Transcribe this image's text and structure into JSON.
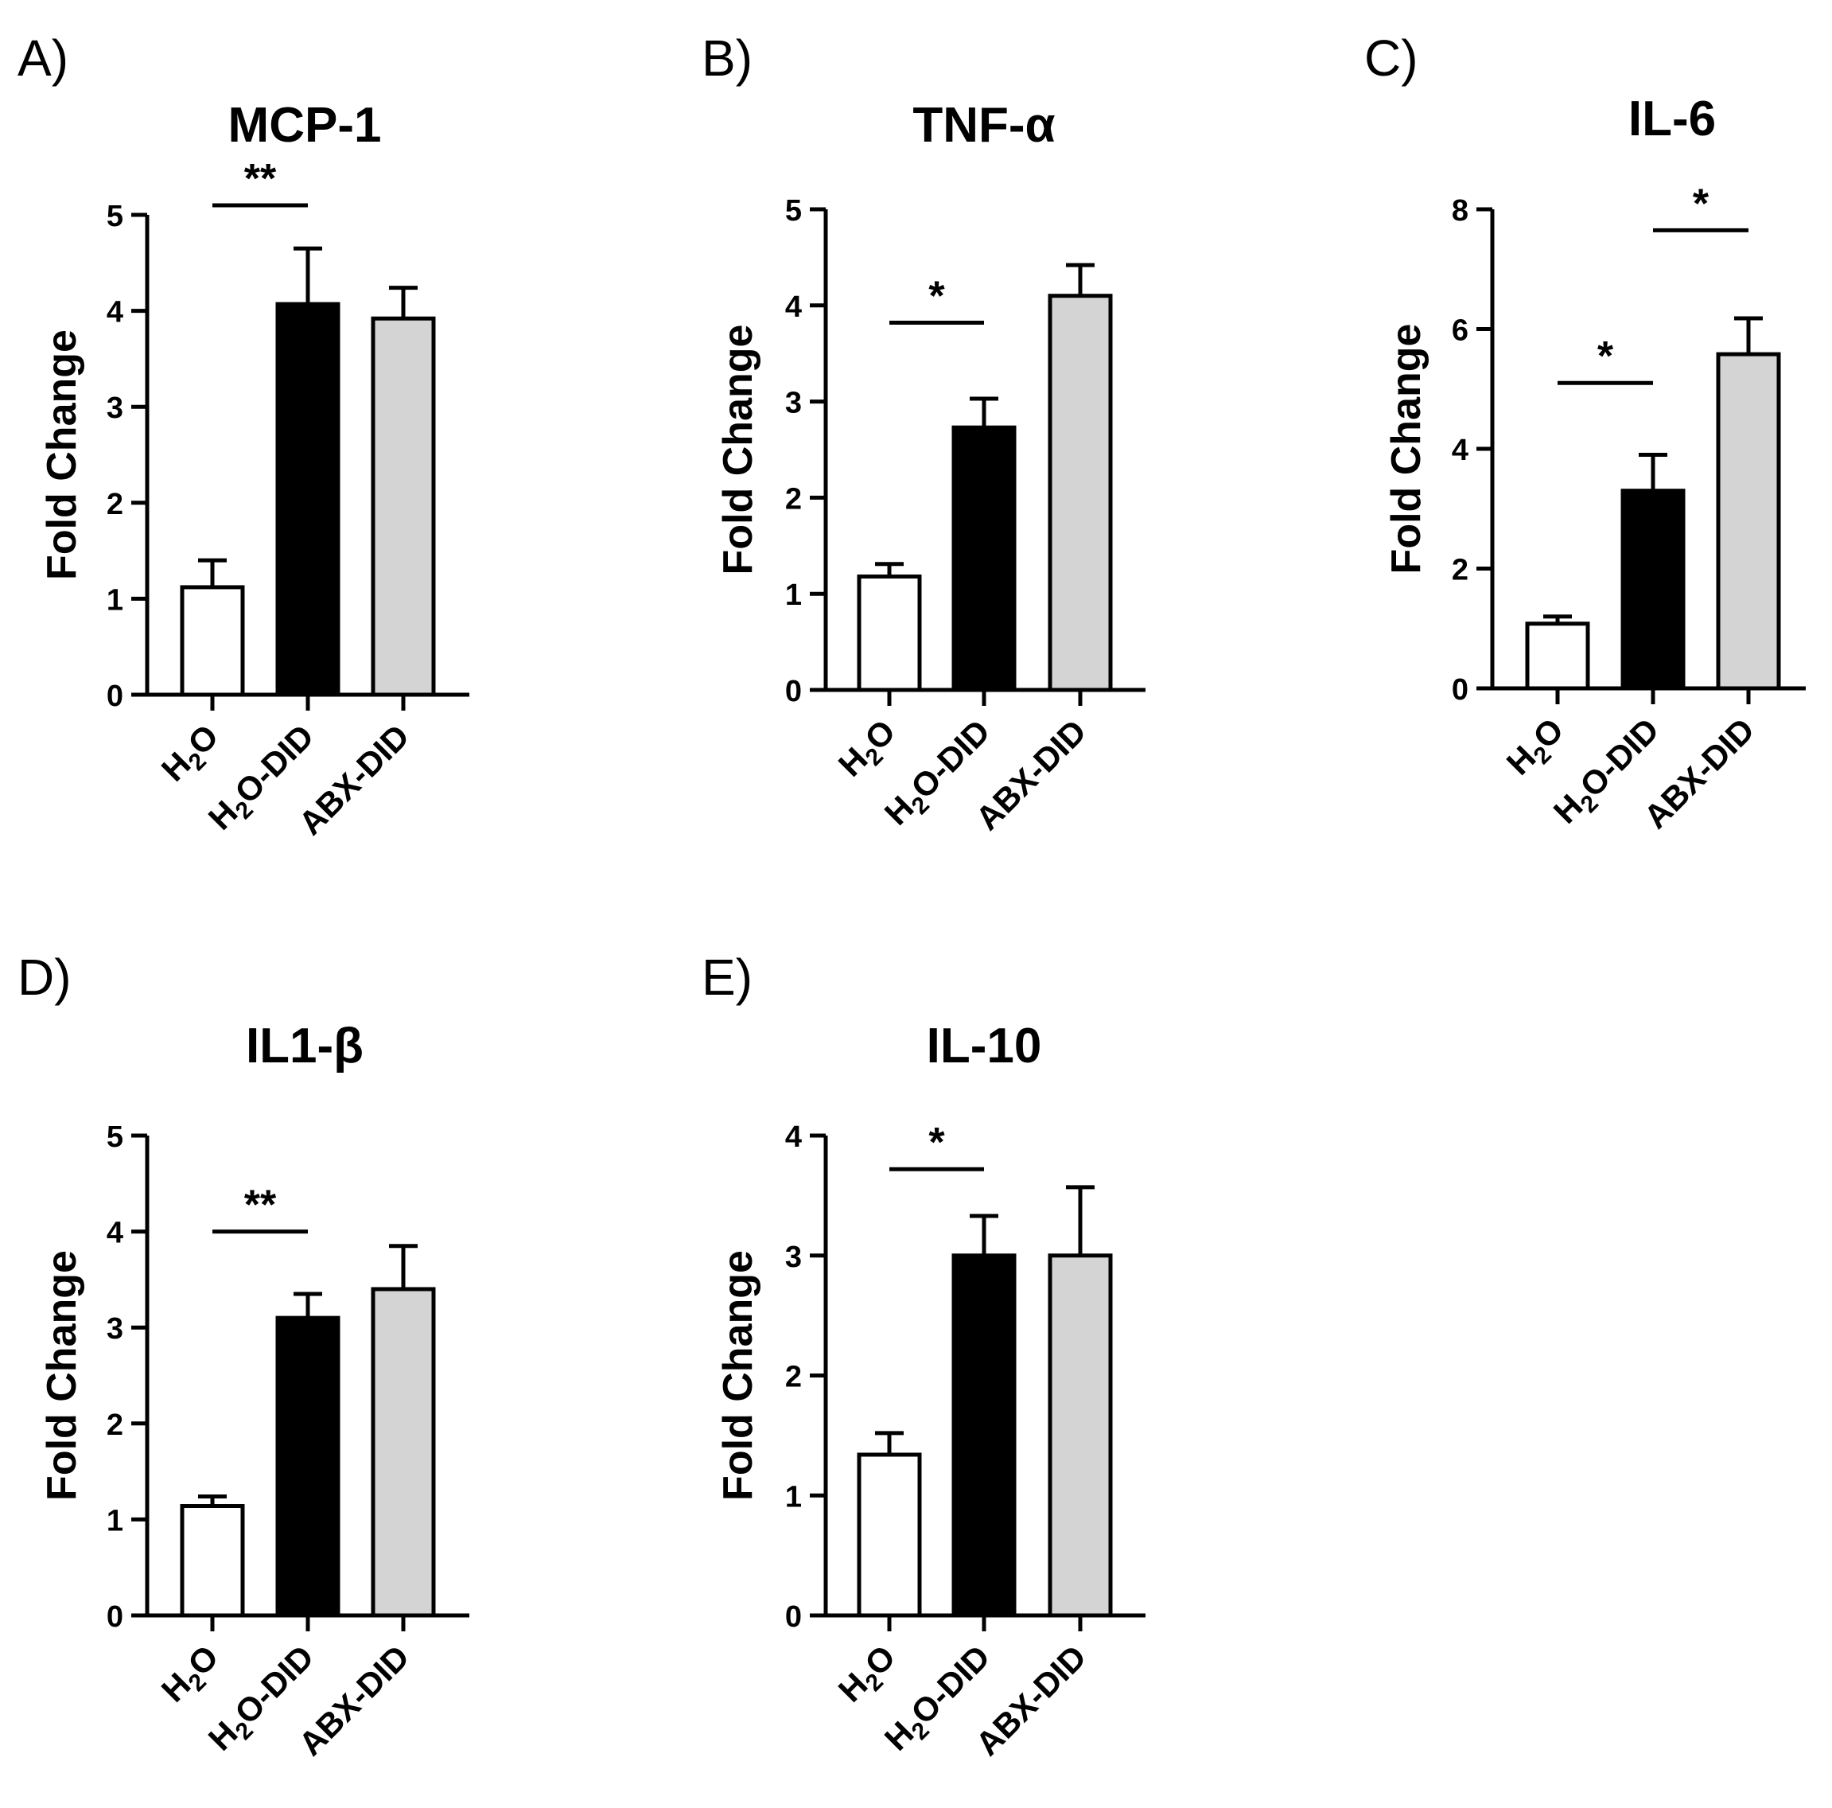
{
  "categories": [
    {
      "main": "H",
      "sub": "2",
      "rest": "O"
    },
    {
      "main": "H",
      "sub": "2",
      "rest": "O-DID"
    },
    {
      "main": "ABX-DID",
      "sub": "",
      "rest": ""
    }
  ],
  "bar_colors": [
    "#ffffff",
    "#000000",
    "#d4d4d4"
  ],
  "chart_data": [
    {
      "panel": "A)",
      "type": "bar",
      "title": "MCP-1",
      "ylabel": "Fold Change",
      "ylim": [
        0,
        5
      ],
      "yticks": [
        0,
        1,
        2,
        3,
        4,
        5
      ],
      "values": [
        1.12,
        4.07,
        3.92
      ],
      "errors": [
        0.28,
        0.58,
        0.32
      ],
      "significance": [
        {
          "from": 0,
          "to": 1,
          "label": "**",
          "y": 5.1
        }
      ]
    },
    {
      "panel": "B)",
      "type": "bar",
      "title": "TNF-α",
      "ylabel": "Fold Change",
      "ylim": [
        0,
        5
      ],
      "yticks": [
        0,
        1,
        2,
        3,
        4,
        5
      ],
      "values": [
        1.18,
        2.73,
        4.1
      ],
      "errors": [
        0.13,
        0.3,
        0.32
      ],
      "significance": [
        {
          "from": 0,
          "to": 1,
          "label": "*",
          "y": 3.82
        }
      ]
    },
    {
      "panel": "C)",
      "type": "bar",
      "title": "IL-6",
      "ylabel": "Fold Change",
      "ylim": [
        0,
        8
      ],
      "yticks": [
        0,
        2,
        4,
        6,
        8
      ],
      "values": [
        1.08,
        3.3,
        5.58
      ],
      "errors": [
        0.12,
        0.6,
        0.6
      ],
      "significance": [
        {
          "from": 0,
          "to": 1,
          "label": "*",
          "y": 5.1
        },
        {
          "from": 1,
          "to": 2,
          "label": "*",
          "y": 7.65
        }
      ]
    },
    {
      "panel": "D)",
      "type": "bar",
      "title": "IL1-β",
      "ylabel": "Fold Change",
      "ylim": [
        0,
        5
      ],
      "yticks": [
        0,
        1,
        2,
        3,
        4,
        5
      ],
      "values": [
        1.14,
        3.1,
        3.4
      ],
      "errors": [
        0.1,
        0.25,
        0.45
      ],
      "significance": [
        {
          "from": 0,
          "to": 1,
          "label": "**",
          "y": 4.0
        }
      ]
    },
    {
      "panel": "E)",
      "type": "bar",
      "title": "IL-10",
      "ylabel": "Fold Change",
      "ylim": [
        0,
        4
      ],
      "yticks": [
        0,
        1,
        2,
        3,
        4
      ],
      "values": [
        1.34,
        3.0,
        3.0
      ],
      "errors": [
        0.18,
        0.33,
        0.57
      ],
      "significance": [
        {
          "from": 0,
          "to": 1,
          "label": "*",
          "y": 3.72
        }
      ]
    }
  ]
}
